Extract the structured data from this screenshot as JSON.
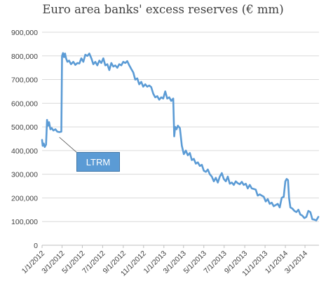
{
  "chart_data": {
    "type": "line",
    "title": "Euro area banks' excess reserves (€ mm)",
    "xlabel": "",
    "ylabel": "",
    "ylim": [
      0,
      900000
    ],
    "yticks": [
      "0",
      "100,000",
      "200,000",
      "300,000",
      "400,000",
      "500,000",
      "600,000",
      "700,000",
      "800,000",
      "900,000"
    ],
    "xticks": [
      "1/1/2012",
      "3/1/2012",
      "5/1/2012",
      "7/1/2012",
      "9/1/2012",
      "11/1/2012",
      "1/1/2013",
      "3/1/2013",
      "5/1/2013",
      "7/1/2013",
      "9/1/2013",
      "11/1/2013",
      "1/1/2014",
      "3/1/2014"
    ],
    "grid": "horizontal",
    "legend": "none",
    "line_color": "#5b9bd5",
    "annotation": {
      "text": "LTRM",
      "x": "2012-02-22",
      "y": 480000
    },
    "series": [
      {
        "values": [
          [
            "2012-01-01",
            445000
          ],
          [
            "2012-01-03",
            420000
          ],
          [
            "2012-01-06",
            430000
          ],
          [
            "2012-01-09",
            415000
          ],
          [
            "2012-01-13",
            425000
          ],
          [
            "2012-01-16",
            530000
          ],
          [
            "2012-01-19",
            505000
          ],
          [
            "2012-01-22",
            520000
          ],
          [
            "2012-01-26",
            490000
          ],
          [
            "2012-01-30",
            495000
          ],
          [
            "2012-02-04",
            485000
          ],
          [
            "2012-02-10",
            490000
          ],
          [
            "2012-02-16",
            480000
          ],
          [
            "2012-02-22",
            478000
          ],
          [
            "2012-02-28",
            480000
          ],
          [
            "2012-03-01",
            800000
          ],
          [
            "2012-03-04",
            812000
          ],
          [
            "2012-03-07",
            795000
          ],
          [
            "2012-03-10",
            810000
          ],
          [
            "2012-03-13",
            790000
          ],
          [
            "2012-03-17",
            775000
          ],
          [
            "2012-03-22",
            780000
          ],
          [
            "2012-03-28",
            765000
          ],
          [
            "2012-04-04",
            775000
          ],
          [
            "2012-04-10",
            762000
          ],
          [
            "2012-04-16",
            770000
          ],
          [
            "2012-04-22",
            768000
          ],
          [
            "2012-04-28",
            790000
          ],
          [
            "2012-05-04",
            775000
          ],
          [
            "2012-05-10",
            805000
          ],
          [
            "2012-05-16",
            800000
          ],
          [
            "2012-05-22",
            810000
          ],
          [
            "2012-05-28",
            790000
          ],
          [
            "2012-06-03",
            765000
          ],
          [
            "2012-06-09",
            775000
          ],
          [
            "2012-06-15",
            760000
          ],
          [
            "2012-06-21",
            780000
          ],
          [
            "2012-06-27",
            770000
          ],
          [
            "2012-07-03",
            790000
          ],
          [
            "2012-07-09",
            760000
          ],
          [
            "2012-07-15",
            765000
          ],
          [
            "2012-07-21",
            740000
          ],
          [
            "2012-07-27",
            770000
          ],
          [
            "2012-08-02",
            755000
          ],
          [
            "2012-08-08",
            760000
          ],
          [
            "2012-08-14",
            750000
          ],
          [
            "2012-08-20",
            765000
          ],
          [
            "2012-08-26",
            760000
          ],
          [
            "2012-09-01",
            775000
          ],
          [
            "2012-09-07",
            770000
          ],
          [
            "2012-09-13",
            778000
          ],
          [
            "2012-09-19",
            760000
          ],
          [
            "2012-09-25",
            745000
          ],
          [
            "2012-10-01",
            730000
          ],
          [
            "2012-10-07",
            700000
          ],
          [
            "2012-10-13",
            705000
          ],
          [
            "2012-10-19",
            680000
          ],
          [
            "2012-10-25",
            690000
          ],
          [
            "2012-10-31",
            670000
          ],
          [
            "2012-11-06",
            680000
          ],
          [
            "2012-11-12",
            670000
          ],
          [
            "2012-11-18",
            675000
          ],
          [
            "2012-11-24",
            668000
          ],
          [
            "2012-11-30",
            640000
          ],
          [
            "2012-12-06",
            625000
          ],
          [
            "2012-12-12",
            630000
          ],
          [
            "2012-12-18",
            615000
          ],
          [
            "2012-12-24",
            625000
          ],
          [
            "2012-12-30",
            620000
          ],
          [
            "2013-01-05",
            650000
          ],
          [
            "2013-01-11",
            620000
          ],
          [
            "2013-01-17",
            625000
          ],
          [
            "2013-01-23",
            610000
          ],
          [
            "2013-01-29",
            620000
          ],
          [
            "2013-02-01",
            460000
          ],
          [
            "2013-02-04",
            500000
          ],
          [
            "2013-02-08",
            490000
          ],
          [
            "2013-02-12",
            505000
          ],
          [
            "2013-02-18",
            495000
          ],
          [
            "2013-02-24",
            420000
          ],
          [
            "2013-03-02",
            385000
          ],
          [
            "2013-03-08",
            400000
          ],
          [
            "2013-03-14",
            380000
          ],
          [
            "2013-03-20",
            390000
          ],
          [
            "2013-03-26",
            360000
          ],
          [
            "2013-04-01",
            365000
          ],
          [
            "2013-04-07",
            345000
          ],
          [
            "2013-04-13",
            350000
          ],
          [
            "2013-04-19",
            335000
          ],
          [
            "2013-04-25",
            340000
          ],
          [
            "2013-05-01",
            315000
          ],
          [
            "2013-05-07",
            310000
          ],
          [
            "2013-05-13",
            320000
          ],
          [
            "2013-05-19",
            300000
          ],
          [
            "2013-05-25",
            290000
          ],
          [
            "2013-05-31",
            270000
          ],
          [
            "2013-06-06",
            285000
          ],
          [
            "2013-06-12",
            265000
          ],
          [
            "2013-06-18",
            290000
          ],
          [
            "2013-06-24",
            305000
          ],
          [
            "2013-06-30",
            280000
          ],
          [
            "2013-07-06",
            270000
          ],
          [
            "2013-07-12",
            290000
          ],
          [
            "2013-07-18",
            260000
          ],
          [
            "2013-07-24",
            265000
          ],
          [
            "2013-07-30",
            255000
          ],
          [
            "2013-08-05",
            270000
          ],
          [
            "2013-08-11",
            262000
          ],
          [
            "2013-08-17",
            258000
          ],
          [
            "2013-08-23",
            268000
          ],
          [
            "2013-08-29",
            255000
          ],
          [
            "2013-09-04",
            260000
          ],
          [
            "2013-09-10",
            240000
          ],
          [
            "2013-09-16",
            255000
          ],
          [
            "2013-09-22",
            240000
          ],
          [
            "2013-09-28",
            238000
          ],
          [
            "2013-10-04",
            235000
          ],
          [
            "2013-10-10",
            210000
          ],
          [
            "2013-10-16",
            215000
          ],
          [
            "2013-10-22",
            210000
          ],
          [
            "2013-10-28",
            205000
          ],
          [
            "2013-11-03",
            185000
          ],
          [
            "2013-11-09",
            195000
          ],
          [
            "2013-11-15",
            175000
          ],
          [
            "2013-11-21",
            180000
          ],
          [
            "2013-11-27",
            165000
          ],
          [
            "2013-12-03",
            170000
          ],
          [
            "2013-12-09",
            175000
          ],
          [
            "2013-12-15",
            160000
          ],
          [
            "2013-12-21",
            200000
          ],
          [
            "2013-12-27",
            205000
          ],
          [
            "2014-01-01",
            270000
          ],
          [
            "2014-01-05",
            280000
          ],
          [
            "2014-01-09",
            275000
          ],
          [
            "2014-01-12",
            200000
          ],
          [
            "2014-01-16",
            160000
          ],
          [
            "2014-01-22",
            155000
          ],
          [
            "2014-01-28",
            145000
          ],
          [
            "2014-02-03",
            140000
          ],
          [
            "2014-02-09",
            150000
          ],
          [
            "2014-02-15",
            130000
          ],
          [
            "2014-02-21",
            125000
          ],
          [
            "2014-02-27",
            115000
          ],
          [
            "2014-03-05",
            120000
          ],
          [
            "2014-03-11",
            145000
          ],
          [
            "2014-03-17",
            140000
          ],
          [
            "2014-03-23",
            110000
          ],
          [
            "2014-03-29",
            108000
          ],
          [
            "2014-04-04",
            105000
          ],
          [
            "2014-04-10",
            120000
          ]
        ]
      }
    ]
  }
}
